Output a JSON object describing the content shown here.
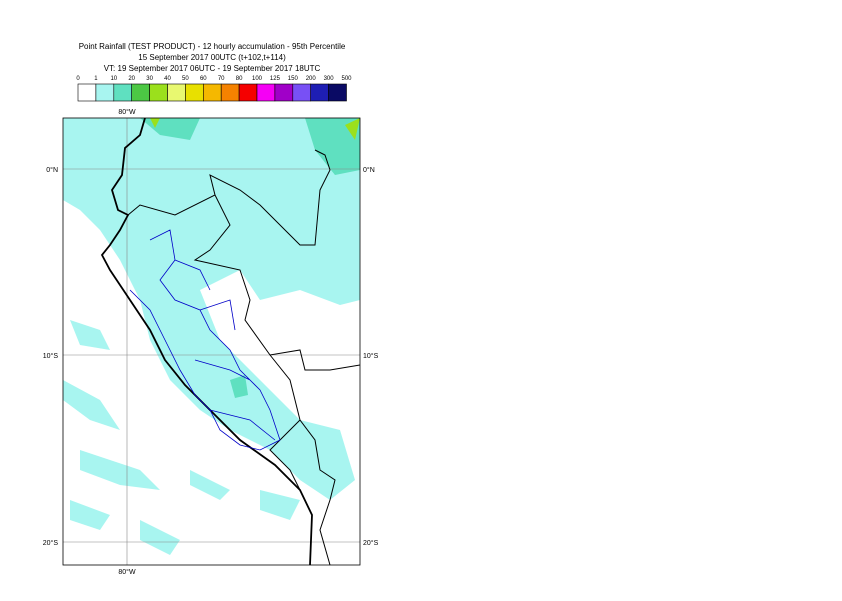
{
  "title": [
    "Point Rainfall (TEST PRODUCT) - 12 hourly accumulation - 95th Percentile",
    "15 September 2017 00UTC (t+102,t+114)",
    "VT: 19 September 2017 06UTC - 19 September 2017 18UTC"
  ],
  "legend": {
    "labels": [
      "0",
      "1",
      "10",
      "20",
      "30",
      "40",
      "50",
      "60",
      "70",
      "80",
      "100",
      "125",
      "150",
      "200",
      "300",
      "500"
    ],
    "colors": [
      "#ffffff",
      "#a8f5f0",
      "#5fe0c0",
      "#4cc844",
      "#9be01c",
      "#e8f870",
      "#e8e000",
      "#f5b800",
      "#f58200",
      "#f50000",
      "#f500f5",
      "#a000c8",
      "#7850f5",
      "#1e1eb4",
      "#0a0a64"
    ]
  },
  "axes": {
    "top_label": "80°W",
    "bottom_label": "80°W",
    "left_labels": [
      "0°N",
      "10°S",
      "20°S"
    ],
    "right_labels": [
      "0°N",
      "10°S",
      "20°S"
    ]
  }
}
